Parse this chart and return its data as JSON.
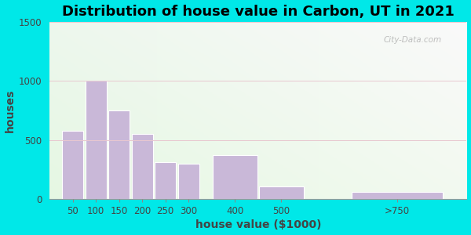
{
  "title": "Distribution of house value in Carbon, UT in 2021",
  "xlabel": "house value ($1000)",
  "ylabel": "houses",
  "categories": [
    "50",
    "100",
    "150",
    "200",
    "250",
    "300",
    "400",
    "500",
    ">750"
  ],
  "x_centers": [
    50,
    100,
    150,
    200,
    250,
    300,
    400,
    500,
    750
  ],
  "x_widths": [
    50,
    50,
    50,
    50,
    50,
    50,
    100,
    100,
    200
  ],
  "values": [
    575,
    1000,
    750,
    550,
    310,
    300,
    375,
    110,
    60
  ],
  "bar_color": "#c9b8d8",
  "bar_edge_color": "#ffffff",
  "ylim": [
    0,
    1500
  ],
  "yticks": [
    0,
    500,
    1000,
    1500
  ],
  "xlim": [
    0,
    900
  ],
  "outer_bg": "#00e8e8",
  "plot_bg_left": "#d8eedd",
  "plot_bg_right": "#f0faf5",
  "title_fontsize": 13,
  "axis_label_fontsize": 10,
  "watermark_text": "City-Data.com"
}
